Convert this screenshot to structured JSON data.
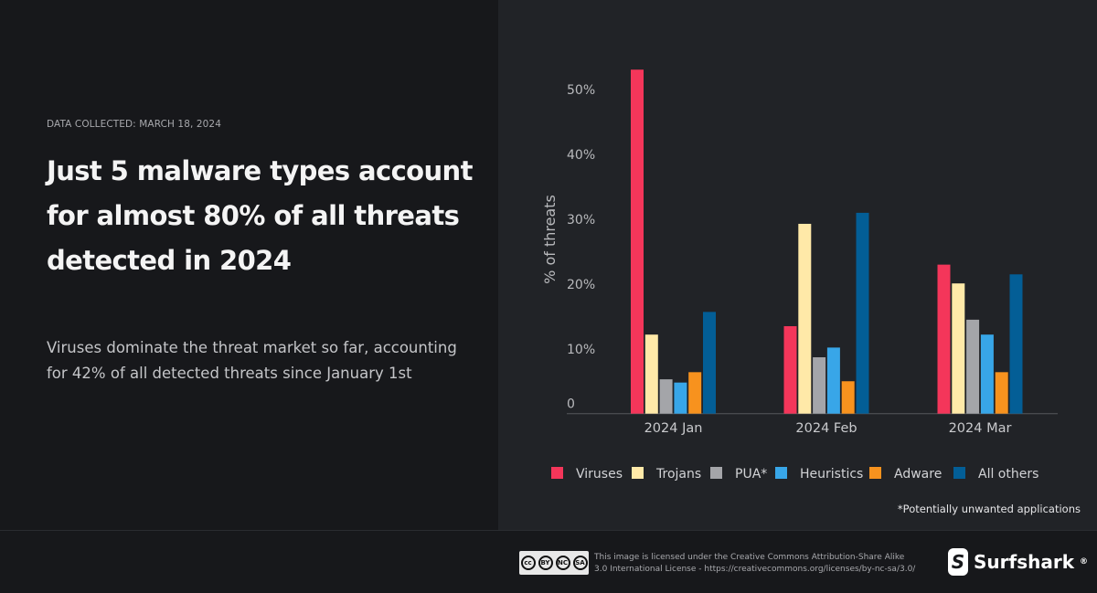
{
  "header": {
    "collected": "DATA COLLECTED: MARCH 18, 2024",
    "title": "Just 5 malware types account for almost 80% of all threats detected in 2024",
    "subtitle": "Viruses dominate the threat market so far, accounting for 42% of all detected threats since January 1st"
  },
  "chart_data": {
    "type": "bar",
    "ylabel": "% of threats",
    "yticks": [
      "0",
      "10%",
      "20%",
      "30%",
      "40%",
      "50%"
    ],
    "ylim": [
      0,
      55
    ],
    "grid": false,
    "legend_position": "bottom",
    "categories": [
      "2024 Jan",
      "2024 Feb",
      "2024 Mar"
    ],
    "series": [
      {
        "name": "Viruses",
        "color": "#f4365a",
        "values": [
          53.1,
          13.5,
          23.0
        ]
      },
      {
        "name": "Trojans",
        "color": "#ffe9a8",
        "values": [
          12.2,
          29.3,
          20.1
        ]
      },
      {
        "name": "PUA*",
        "color": "#a4a5a9",
        "values": [
          5.3,
          8.7,
          14.5
        ]
      },
      {
        "name": "Heuristics",
        "color": "#38a6e8",
        "values": [
          4.8,
          10.2,
          12.2
        ]
      },
      {
        "name": "Adware",
        "color": "#f7921e",
        "values": [
          6.4,
          5.0,
          6.4
        ]
      },
      {
        "name": "All others",
        "color": "#035e96",
        "values": [
          15.7,
          31.0,
          21.5
        ]
      }
    ],
    "footnote": "*Potentially unwanted applications"
  },
  "footer": {
    "cc_badges": [
      "BY",
      "NC",
      "SA"
    ],
    "license_line1": "This image is licensed under the Creative Commons Attribution-Share Alike",
    "license_line2": "3.0 International License - https://creativecommons.org/licenses/by-nc-sa/3.0/",
    "brand": "Surfshark",
    "brand_mark": "®"
  }
}
